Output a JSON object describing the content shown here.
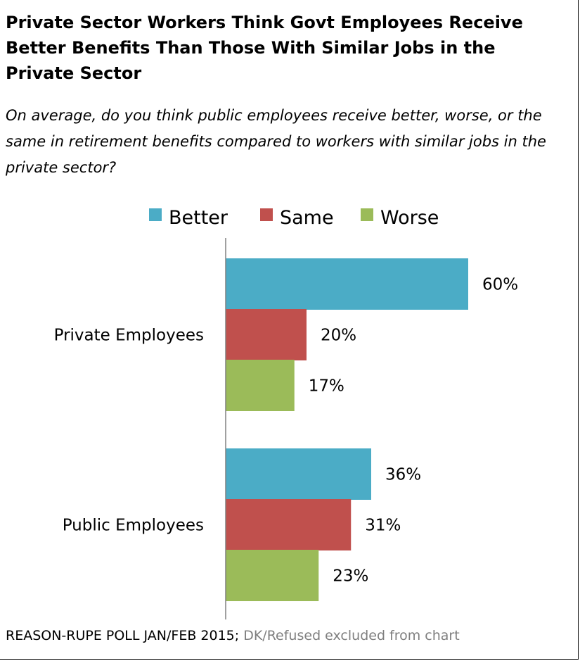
{
  "title": "Private Sector Workers Think Govt Employees Receive Better Benefits Than Those With Similar Jobs in the Private Sector",
  "subtitle": "On average, do you think public employees receive better, worse, or the same in retirement benefits compared to workers with similar jobs in the private sector?",
  "footer": {
    "source": "REASON-RUPE POLL JAN/FEB 2015;",
    "note": "DK/Refused excluded from chart"
  },
  "chart_data": {
    "type": "bar",
    "orientation": "horizontal",
    "categories": [
      "Private Employees",
      "Public Employees"
    ],
    "series": [
      {
        "name": "Better",
        "color": "#4bacc6",
        "values": [
          60,
          36
        ],
        "labels": [
          "60%",
          "36%"
        ]
      },
      {
        "name": "Same",
        "color": "#c0504d",
        "values": [
          20,
          31
        ],
        "labels": [
          "20%",
          "31%"
        ]
      },
      {
        "name": "Worse",
        "color": "#9bbb59",
        "values": [
          17,
          23
        ],
        "labels": [
          "17%",
          "23%"
        ]
      }
    ],
    "xlim": [
      0,
      60
    ],
    "legend": "top",
    "grid": false
  }
}
